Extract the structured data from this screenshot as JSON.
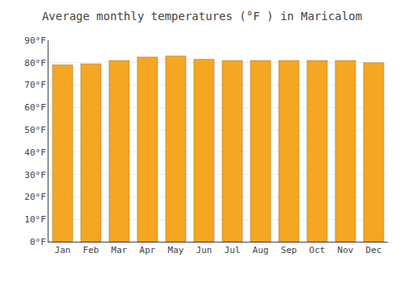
{
  "chart_data": {
    "type": "bar",
    "title": "Average monthly temperatures (°F ) in Maricalom",
    "categories": [
      "Jan",
      "Feb",
      "Mar",
      "Apr",
      "May",
      "Jun",
      "Jul",
      "Aug",
      "Sep",
      "Oct",
      "Nov",
      "Dec"
    ],
    "values": [
      79.0,
      79.5,
      81.0,
      82.5,
      83.0,
      81.5,
      81.0,
      81.0,
      81.0,
      81.0,
      81.0,
      80.0
    ],
    "color": "#F5A623",
    "ylim": [
      0,
      90
    ],
    "yticks": [
      {
        "value": 0,
        "label": "0°F"
      },
      {
        "value": 10,
        "label": "10°F"
      },
      {
        "value": 20,
        "label": "20°F"
      },
      {
        "value": 30,
        "label": "30°F"
      },
      {
        "value": 40,
        "label": "40°F"
      },
      {
        "value": 50,
        "label": "50°F"
      },
      {
        "value": 60,
        "label": "60°F"
      },
      {
        "value": 70,
        "label": "70°F"
      },
      {
        "value": 80,
        "label": "80°F"
      },
      {
        "value": 90,
        "label": "90°F"
      }
    ],
    "grid": true
  }
}
